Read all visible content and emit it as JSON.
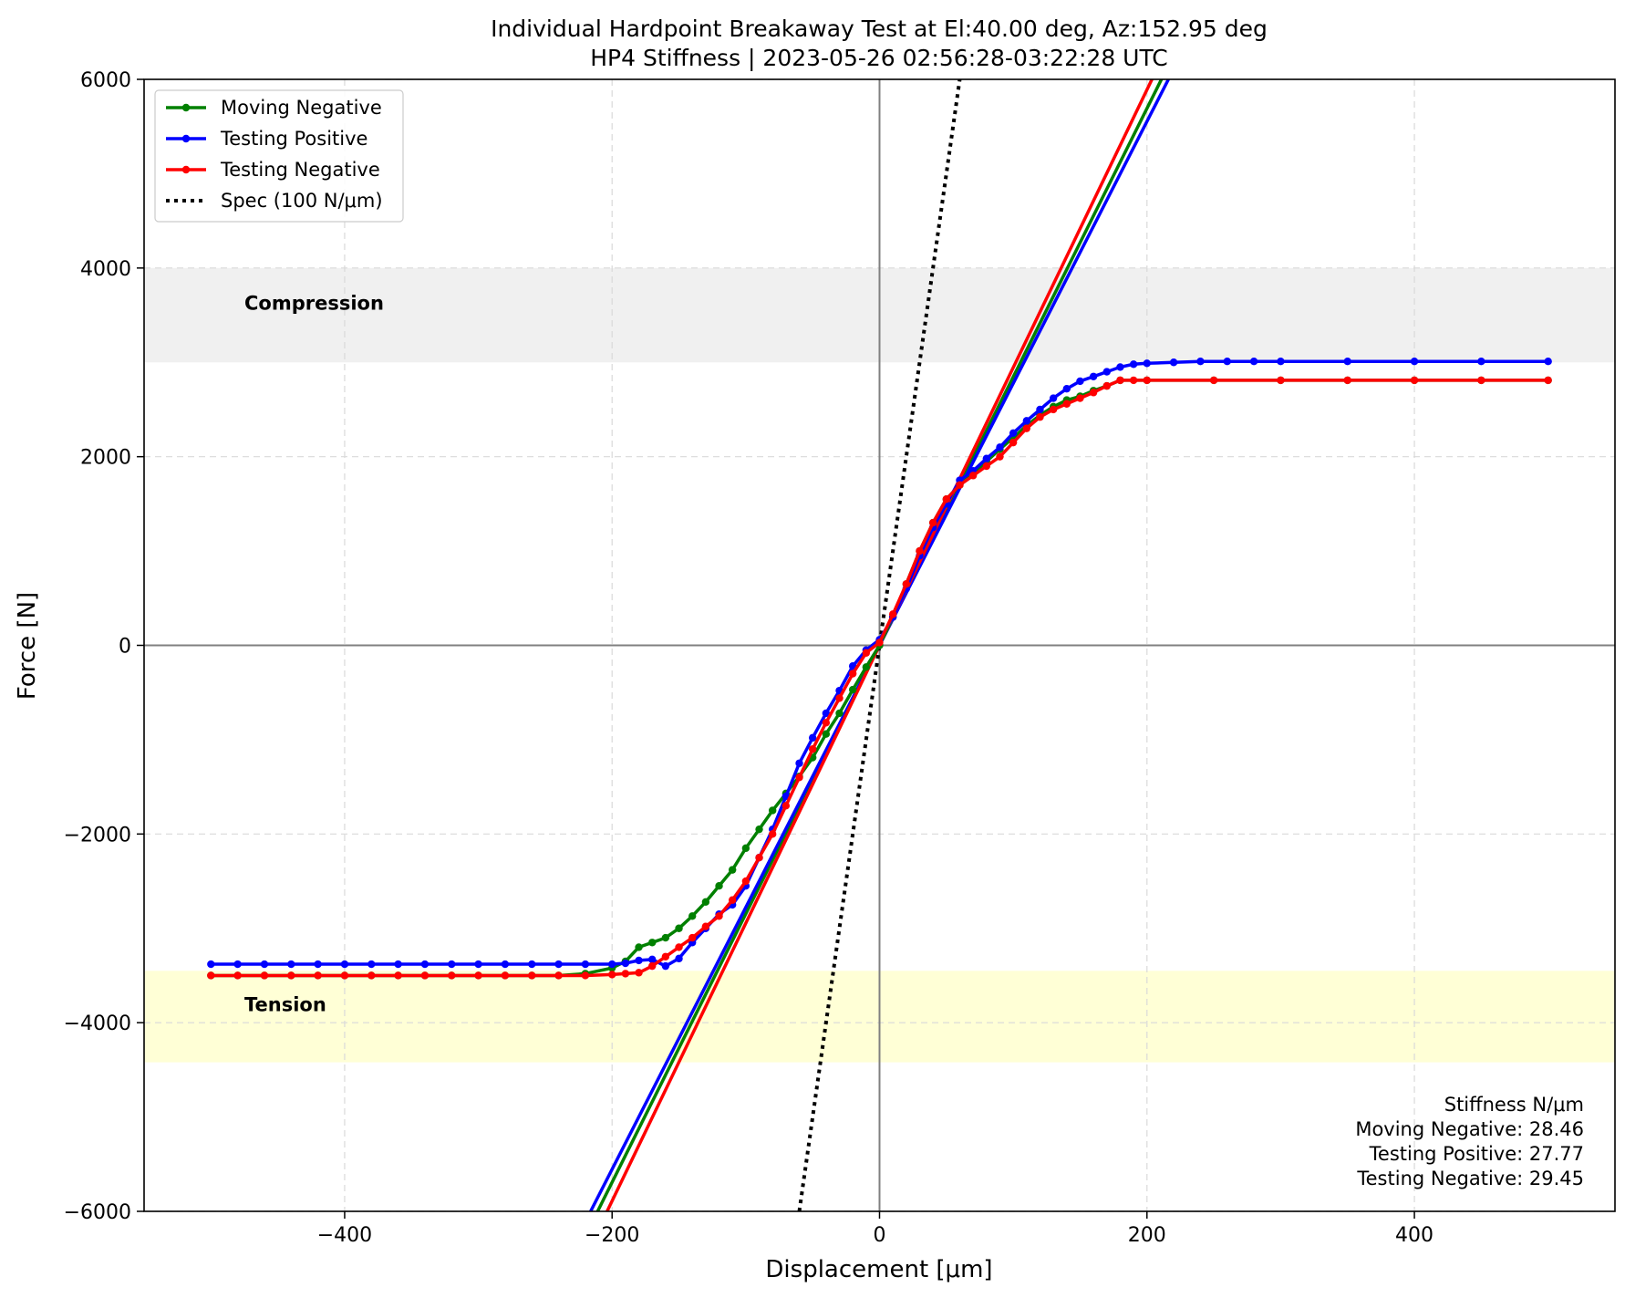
{
  "chart_data": {
    "type": "line",
    "title": "Individual Hardpoint Breakaway Test at El:40.00 deg, Az:152.95 deg",
    "subtitle": "HP4 Stiffness | 2023-05-26 02:56:28-03:22:28 UTC",
    "xlabel": "Displacement [μm]",
    "ylabel": "Force [N]",
    "xlim": [
      -550,
      550
    ],
    "ylim": [
      -6000,
      6000
    ],
    "xticks": [
      -400,
      -200,
      0,
      200,
      400
    ],
    "yticks": [
      -6000,
      -4000,
      -2000,
      0,
      2000,
      4000,
      6000
    ],
    "xtick_labels": [
      "−400",
      "−200",
      "0",
      "200",
      "400"
    ],
    "ytick_labels": [
      "−6000",
      "−4000",
      "−2000",
      "0",
      "2000",
      "4000",
      "6000"
    ],
    "grid": true,
    "legend_position": "top-left",
    "bands": [
      {
        "label": "Compression",
        "ymin": 3000,
        "ymax": 4000,
        "color": "#f0f0f0"
      },
      {
        "label": "Tension",
        "ymin": -4420,
        "ymax": -3450,
        "color": "#ffffd6"
      }
    ],
    "series": [
      {
        "name": "Moving Negative",
        "color": "#008000",
        "x": [
          -500,
          -480,
          -460,
          -440,
          -420,
          -400,
          -380,
          -360,
          -340,
          -320,
          -300,
          -280,
          -260,
          -240,
          -220,
          -200,
          -190,
          -180,
          -170,
          -160,
          -150,
          -140,
          -130,
          -120,
          -110,
          -100,
          -90,
          -80,
          -70,
          -60,
          -50,
          -40,
          -30,
          -20,
          -10,
          0,
          10,
          20,
          30,
          40,
          50,
          60,
          70,
          80,
          90,
          100,
          110,
          120,
          130,
          140,
          150,
          160,
          170,
          180,
          200,
          250,
          300,
          350,
          400,
          450,
          500
        ],
        "y": [
          -3500,
          -3500,
          -3500,
          -3500,
          -3500,
          -3500,
          -3500,
          -3500,
          -3500,
          -3500,
          -3500,
          -3500,
          -3500,
          -3500,
          -3480,
          -3420,
          -3350,
          -3200,
          -3150,
          -3100,
          -3000,
          -2870,
          -2720,
          -2550,
          -2380,
          -2150,
          -1950,
          -1750,
          -1570,
          -1390,
          -1190,
          -940,
          -720,
          -470,
          -230,
          0,
          300,
          650,
          1000,
          1300,
          1550,
          1700,
          1820,
          1950,
          2080,
          2200,
          2330,
          2440,
          2530,
          2600,
          2640,
          2700,
          2750,
          2810,
          2810,
          2810,
          2810,
          2810,
          2810,
          2810,
          2810
        ]
      },
      {
        "name": "Testing Positive",
        "color": "#0000ff",
        "x": [
          -500,
          -480,
          -460,
          -440,
          -420,
          -400,
          -380,
          -360,
          -340,
          -320,
          -300,
          -280,
          -260,
          -240,
          -220,
          -200,
          -190,
          -180,
          -170,
          -160,
          -150,
          -140,
          -130,
          -120,
          -110,
          -100,
          -90,
          -80,
          -70,
          -60,
          -50,
          -40,
          -30,
          -20,
          -10,
          0,
          10,
          20,
          30,
          40,
          50,
          60,
          70,
          80,
          90,
          100,
          110,
          120,
          130,
          140,
          150,
          160,
          170,
          180,
          190,
          200,
          220,
          240,
          260,
          280,
          300,
          350,
          400,
          450,
          500
        ],
        "y": [
          -3380,
          -3380,
          -3380,
          -3380,
          -3380,
          -3380,
          -3380,
          -3380,
          -3380,
          -3380,
          -3380,
          -3380,
          -3380,
          -3380,
          -3380,
          -3380,
          -3370,
          -3340,
          -3330,
          -3400,
          -3320,
          -3150,
          -3000,
          -2850,
          -2750,
          -2550,
          -2250,
          -1950,
          -1600,
          -1250,
          -980,
          -720,
          -480,
          -220,
          -50,
          60,
          300,
          600,
          950,
          1250,
          1500,
          1750,
          1850,
          1980,
          2100,
          2250,
          2380,
          2500,
          2620,
          2720,
          2800,
          2850,
          2900,
          2950,
          2980,
          2990,
          3000,
          3010,
          3010,
          3010,
          3010,
          3010,
          3010,
          3010,
          3010
        ]
      },
      {
        "name": "Testing Negative",
        "color": "#ff0000",
        "x": [
          -500,
          -480,
          -460,
          -440,
          -420,
          -400,
          -380,
          -360,
          -340,
          -320,
          -300,
          -280,
          -260,
          -240,
          -220,
          -200,
          -190,
          -180,
          -170,
          -160,
          -150,
          -140,
          -130,
          -120,
          -110,
          -100,
          -90,
          -80,
          -70,
          -60,
          -50,
          -40,
          -30,
          -20,
          -10,
          0,
          10,
          20,
          30,
          40,
          50,
          60,
          70,
          80,
          90,
          100,
          110,
          120,
          130,
          140,
          150,
          160,
          170,
          180,
          190,
          200,
          250,
          300,
          350,
          400,
          450,
          500
        ],
        "y": [
          -3500,
          -3500,
          -3500,
          -3500,
          -3500,
          -3500,
          -3500,
          -3500,
          -3500,
          -3500,
          -3500,
          -3500,
          -3500,
          -3500,
          -3500,
          -3490,
          -3480,
          -3470,
          -3400,
          -3300,
          -3200,
          -3100,
          -2980,
          -2870,
          -2700,
          -2500,
          -2250,
          -2000,
          -1700,
          -1400,
          -1100,
          -820,
          -560,
          -300,
          -80,
          30,
          330,
          650,
          1000,
          1300,
          1550,
          1700,
          1800,
          1900,
          2000,
          2150,
          2300,
          2420,
          2500,
          2560,
          2620,
          2680,
          2750,
          2810,
          2810,
          2810,
          2810,
          2810,
          2810,
          2810,
          2810,
          2810
        ]
      }
    ],
    "fit_lines": [
      {
        "series": "Moving Negative",
        "color": "#008000",
        "slope": 28.46
      },
      {
        "series": "Testing Positive",
        "color": "#0000ff",
        "slope": 27.77
      },
      {
        "series": "Testing Negative",
        "color": "#ff0000",
        "slope": 29.45
      }
    ],
    "spec_line": {
      "name": "Spec (100 N/μm)",
      "color": "#000000",
      "slope": 100
    },
    "legend": [
      {
        "label": "Moving Negative",
        "color": "#008000",
        "style": "line-marker"
      },
      {
        "label": "Testing Positive",
        "color": "#0000ff",
        "style": "line-marker"
      },
      {
        "label": "Testing Negative",
        "color": "#ff0000",
        "style": "line-marker"
      },
      {
        "label": "Spec (100 N/μm)",
        "color": "#000000",
        "style": "dotted"
      }
    ],
    "annotation": {
      "lines": [
        "Stiffness N/μm",
        "Moving Negative: 28.46",
        "Testing Positive: 27.77",
        "Testing Negative: 29.45"
      ],
      "position": "bottom-right"
    }
  }
}
